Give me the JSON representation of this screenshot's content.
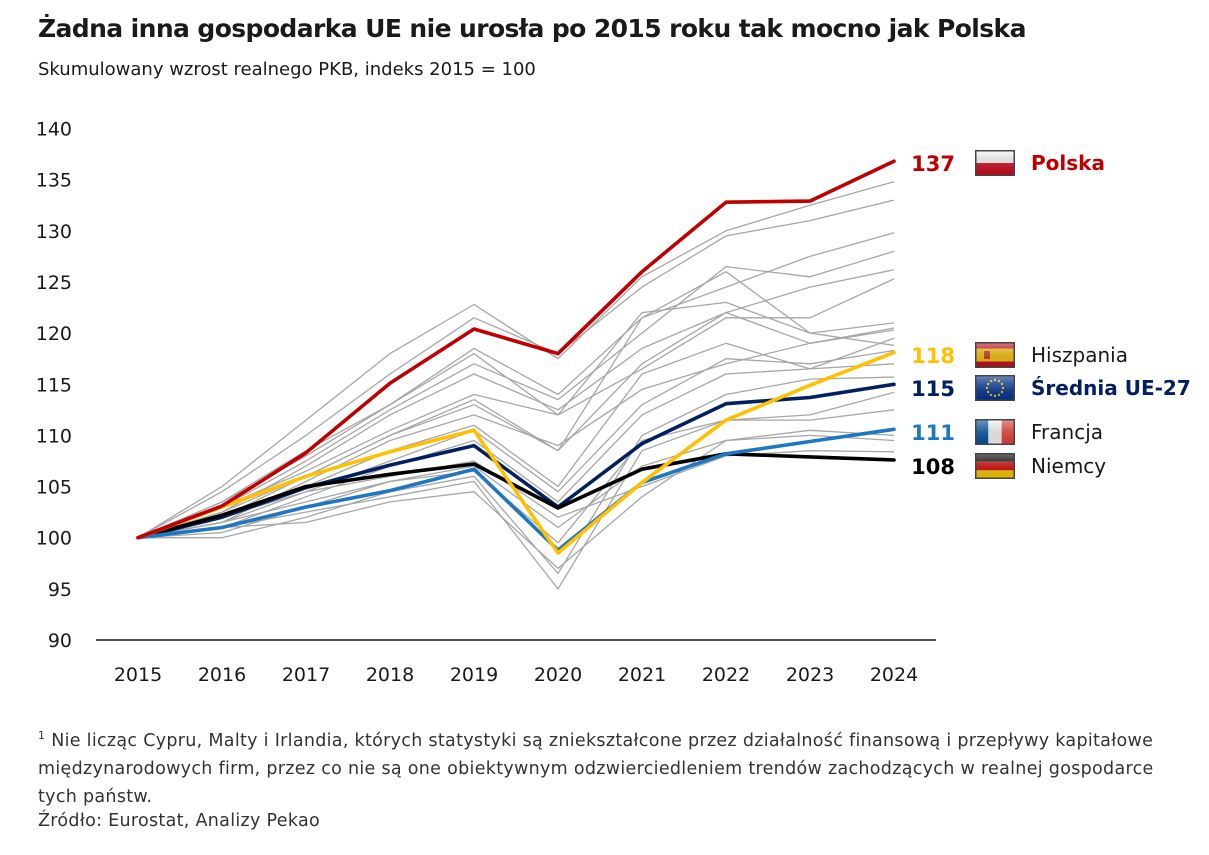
{
  "title": "Żadna inna gospodarka UE nie urosła po 2015 roku tak mocno jak Polska",
  "subtitle": "Skumulowany wzrost realnego PKB, indeks 2015 = 100",
  "footnote_marker": "1",
  "footnote": "Nie licząc Cypru, Malty i Irlandia, których statystyki są zniekształcone przez działalność finansową i przepływy kapitałowe międzynarodowych firm, przez co nie są one obiektywnym odzwierciedleniem trendów zachodzących w realnej gospodarce tych państw.",
  "source": "Źródło: Eurostat, Analizy Pekao",
  "chart_data": {
    "type": "line",
    "x": [
      "2015",
      "2016",
      "2017",
      "2018",
      "2019",
      "2020",
      "2021",
      "2022",
      "2023",
      "2024"
    ],
    "ylim": [
      90,
      140
    ],
    "yticks": [
      90,
      95,
      100,
      105,
      110,
      115,
      120,
      125,
      130,
      135,
      140
    ],
    "grid": false,
    "highlight_series": [
      {
        "name": "Polska",
        "label": "137",
        "color": "#c00000",
        "flag": "pl",
        "values": [
          100,
          103.1,
          108.3,
          115.1,
          120.4,
          118.0,
          126.0,
          132.8,
          132.9,
          136.8
        ]
      },
      {
        "name": "Hiszpania",
        "label": "118",
        "color": "#ffc000",
        "flag": "es",
        "values": [
          100,
          103.0,
          106.0,
          108.4,
          110.5,
          98.5,
          105.4,
          111.5,
          114.9,
          118.1
        ]
      },
      {
        "name": "Średnia UE-27",
        "label": "115",
        "color": "#002060",
        "flag": "eu",
        "values": [
          100,
          102.0,
          104.9,
          107.1,
          109.0,
          103.0,
          109.2,
          113.1,
          113.7,
          115.0
        ]
      },
      {
        "name": "Francja",
        "label": "111",
        "color": "#1f77c4",
        "flag": "fr",
        "values": [
          100,
          101.0,
          103.0,
          104.6,
          106.7,
          98.8,
          105.4,
          108.2,
          109.4,
          110.6
        ]
      },
      {
        "name": "Niemcy",
        "label": "108",
        "color": "#000000",
        "flag": "de",
        "values": [
          100,
          102.2,
          105.0,
          106.2,
          107.2,
          102.9,
          106.7,
          108.2,
          107.9,
          107.6
        ]
      }
    ],
    "background_series": [
      [
        100,
        105.0,
        111.5,
        118.0,
        122.8,
        117.5,
        125.5,
        130.0,
        132.5,
        134.8
      ],
      [
        100,
        104.5,
        110.0,
        116.0,
        121.5,
        118.0,
        124.5,
        129.5,
        131.0,
        133.0
      ],
      [
        100,
        103.5,
        108.5,
        113.0,
        118.5,
        114.0,
        121.5,
        124.5,
        127.5,
        129.8
      ],
      [
        100,
        103.0,
        107.5,
        112.5,
        117.0,
        113.5,
        120.0,
        126.5,
        125.5,
        128.0
      ],
      [
        100,
        102.5,
        107.0,
        112.0,
        116.0,
        112.5,
        118.5,
        122.0,
        124.5,
        126.2
      ],
      [
        100,
        103.0,
        106.5,
        110.5,
        114.0,
        112.0,
        116.5,
        121.5,
        121.5,
        125.3
      ],
      [
        100,
        102.0,
        106.0,
        110.0,
        113.5,
        108.5,
        121.5,
        126.0,
        120.0,
        121.0
      ],
      [
        100,
        101.5,
        105.5,
        109.5,
        112.0,
        109.0,
        114.5,
        117.0,
        119.0,
        120.3
      ],
      [
        100,
        102.0,
        105.0,
        108.5,
        111.0,
        105.0,
        116.0,
        119.0,
        116.5,
        119.5
      ],
      [
        100,
        101.5,
        104.5,
        107.5,
        110.5,
        104.5,
        113.0,
        117.5,
        117.0,
        118.3
      ],
      [
        100,
        101.0,
        104.0,
        107.0,
        109.5,
        103.5,
        112.0,
        116.0,
        116.5,
        117.0
      ],
      [
        100,
        100.0,
        102.0,
        104.5,
        106.0,
        96.5,
        110.0,
        114.0,
        115.5,
        115.7
      ],
      [
        100,
        101.0,
        102.5,
        104.0,
        105.5,
        95.0,
        108.5,
        111.5,
        112.0,
        114.2
      ],
      [
        100,
        100.5,
        103.0,
        105.5,
        106.5,
        99.5,
        109.5,
        111.5,
        111.5,
        112.5
      ],
      [
        100,
        101.0,
        101.5,
        103.5,
        104.5,
        97.0,
        104.0,
        109.5,
        110.5,
        110.0
      ],
      [
        100,
        102.0,
        104.5,
        106.0,
        107.5,
        102.0,
        105.0,
        108.0,
        108.5,
        108.4
      ],
      [
        100,
        101.5,
        103.5,
        105.5,
        107.0,
        101.0,
        107.0,
        109.5,
        110.0,
        109.5
      ],
      [
        100,
        102.5,
        106.0,
        110.0,
        113.0,
        108.5,
        117.0,
        122.0,
        119.0,
        120.5
      ],
      [
        100,
        103.5,
        108.0,
        113.0,
        118.0,
        112.0,
        122.0,
        123.0,
        120.0,
        118.8
      ]
    ]
  }
}
